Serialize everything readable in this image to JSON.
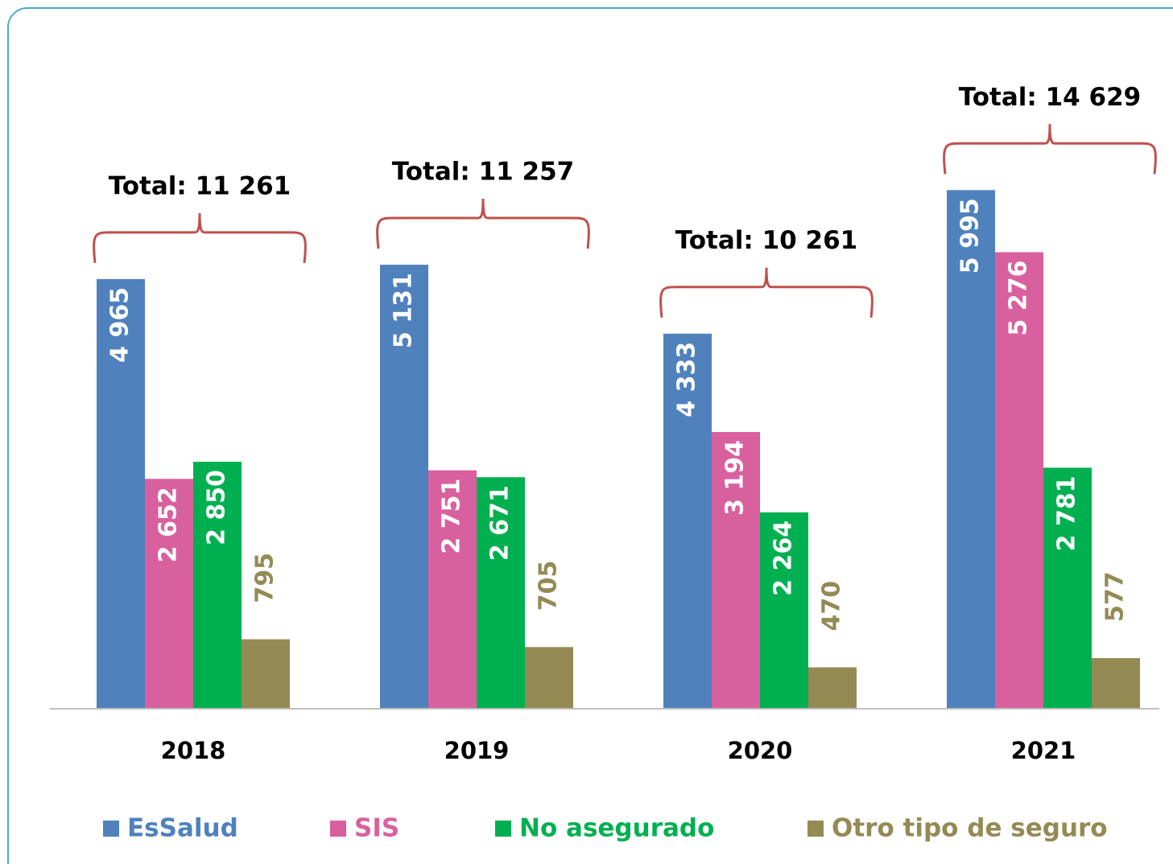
{
  "chart_data": {
    "type": "bar",
    "categories": [
      "2018",
      "2019",
      "2020",
      "2021"
    ],
    "series": [
      {
        "name": "EsSalud",
        "color": "#4f81bd",
        "values": [
          4965,
          5131,
          4333,
          5995
        ],
        "value_labels": [
          "4 965",
          "5 131",
          "4 333",
          "5 995"
        ]
      },
      {
        "name": "SIS",
        "color": "#d9609e",
        "values": [
          2652,
          2751,
          3194,
          5276
        ],
        "value_labels": [
          "2 652",
          "2 751",
          "3 194",
          "5 276"
        ]
      },
      {
        "name": "No asegurado",
        "color": "#00b050",
        "values": [
          2850,
          2671,
          2264,
          2781
        ],
        "value_labels": [
          "2 850",
          "2 671",
          "2 264",
          "2 781"
        ]
      },
      {
        "name": "Otro tipo de seguro",
        "color": "#948a54",
        "values": [
          795,
          705,
          470,
          577
        ],
        "value_labels": [
          "795",
          "705",
          "470",
          "577"
        ]
      }
    ],
    "annotations": [
      "Total: 11 261",
      "Total: 11 257",
      "Total: 10 261",
      "Total: 14 629"
    ],
    "ylim": [
      0,
      8000
    ],
    "legend": "bottom"
  }
}
